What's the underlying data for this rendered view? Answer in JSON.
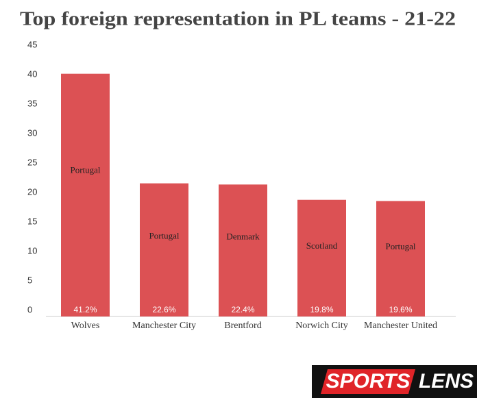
{
  "chart_data": {
    "type": "bar",
    "title": "Top foreign representation in PL teams - 21-22",
    "categories": [
      "Wolves",
      "Manchester City",
      "Brentford",
      "Norwich City",
      "Manchester United"
    ],
    "values": [
      41.2,
      22.6,
      22.4,
      19.8,
      19.6
    ],
    "value_labels": [
      "41.2%",
      "22.6%",
      "22.4%",
      "19.8%",
      "19.6%"
    ],
    "bar_labels": [
      "Portugal",
      "Portugal",
      "Denmark",
      "Scotland",
      "Portugal"
    ],
    "color": "#dc5154",
    "ylim": [
      0,
      45
    ],
    "yticks": [
      0,
      5,
      10,
      15,
      20,
      25,
      30,
      35,
      40,
      45
    ],
    "grid": false
  },
  "logo": {
    "left": "SPORTS",
    "right": "LENS"
  }
}
